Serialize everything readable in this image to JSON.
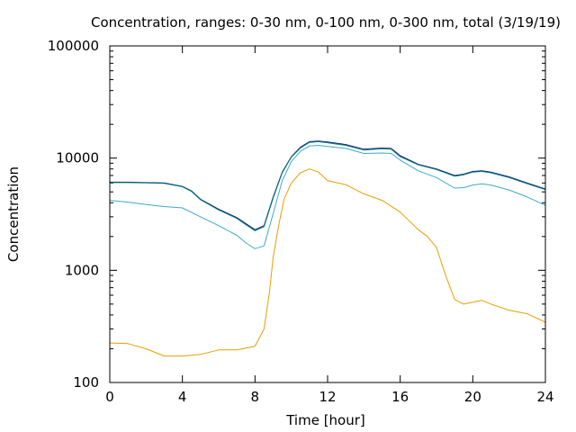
{
  "chart_data": {
    "type": "line",
    "title": "Concentration, ranges: 0-30 nm, 0-100 nm, 0-300 nm, total (3/19/19)",
    "xlabel": "Time [hour]",
    "ylabel": "Concentration",
    "xlim": [
      0,
      24
    ],
    "ylim": [
      100,
      100000
    ],
    "yscale": "log",
    "grid": false,
    "legend": "none",
    "xticks": [
      "0",
      "4",
      "8",
      "12",
      "16",
      "20",
      "24"
    ],
    "yticks": [
      "100",
      "1000",
      "10000",
      "100000"
    ],
    "series": [
      {
        "color": "#191970",
        "x": [
          0,
          1,
          2,
          3,
          4,
          4.5,
          5,
          6,
          7,
          7.5,
          8,
          8.5,
          9,
          9.5,
          10,
          10.5,
          11,
          11.5,
          12,
          13,
          14,
          15,
          15.5,
          16,
          17,
          18,
          19,
          19.5,
          20,
          20.5,
          21,
          22,
          23,
          24
        ],
        "y": [
          6100,
          6100,
          6050,
          6000,
          5600,
          5100,
          4300,
          3500,
          2950,
          2600,
          2300,
          2500,
          4500,
          7500,
          10300,
          12500,
          14000,
          14200,
          13900,
          13200,
          12000,
          12300,
          12200,
          10500,
          8800,
          8000,
          7000,
          7200,
          7600,
          7700,
          7500,
          6800,
          6000,
          5300
        ]
      },
      {
        "color": "#008080",
        "x": [
          0,
          1,
          2,
          3,
          4,
          4.5,
          5,
          6,
          7,
          7.5,
          8,
          8.5,
          9,
          9.5,
          10,
          10.5,
          11,
          11.5,
          12,
          13,
          14,
          15,
          15.5,
          16,
          17,
          18,
          19,
          19.5,
          20,
          20.5,
          21,
          22,
          23,
          24
        ],
        "y": [
          6050,
          6050,
          6000,
          5950,
          5550,
          5050,
          4250,
          3450,
          2900,
          2550,
          2250,
          2450,
          4400,
          7400,
          10200,
          12300,
          13800,
          14000,
          13700,
          13000,
          11800,
          12100,
          12000,
          10300,
          8700,
          7900,
          6900,
          7100,
          7500,
          7600,
          7400,
          6700,
          5900,
          5250
        ]
      },
      {
        "color": "#3fa9c9",
        "x": [
          0,
          1,
          2,
          3,
          4,
          5,
          6,
          7,
          7.5,
          8,
          8.5,
          9,
          9.5,
          10,
          10.5,
          11,
          11.5,
          12,
          13,
          14,
          15,
          15.5,
          16,
          17,
          18,
          19,
          19.5,
          20,
          20.5,
          21,
          22,
          23,
          24
        ],
        "y": [
          4200,
          4050,
          3850,
          3700,
          3600,
          3000,
          2500,
          2050,
          1750,
          1560,
          1650,
          3200,
          6300,
          9300,
          11500,
          12800,
          13000,
          12700,
          12200,
          11000,
          11100,
          11000,
          9600,
          7700,
          6700,
          5400,
          5450,
          5750,
          5900,
          5750,
          5200,
          4500,
          3800
        ]
      },
      {
        "color": "#e69f00",
        "x": [
          0,
          1,
          2,
          3,
          4,
          5,
          6,
          7,
          8,
          8.5,
          8.8,
          9,
          9.3,
          9.6,
          10,
          10.5,
          11,
          11.5,
          12,
          13,
          14,
          15,
          16,
          17,
          17.5,
          18,
          18.5,
          19,
          19.5,
          20,
          20.5,
          21,
          22,
          23,
          24
        ],
        "y": [
          225,
          222,
          200,
          172,
          172,
          178,
          195,
          195,
          210,
          300,
          650,
          1300,
          2500,
          4300,
          6000,
          7400,
          8000,
          7500,
          6300,
          5800,
          4800,
          4200,
          3300,
          2300,
          2000,
          1600,
          900,
          550,
          500,
          520,
          540,
          500,
          440,
          410,
          345
        ]
      }
    ]
  }
}
